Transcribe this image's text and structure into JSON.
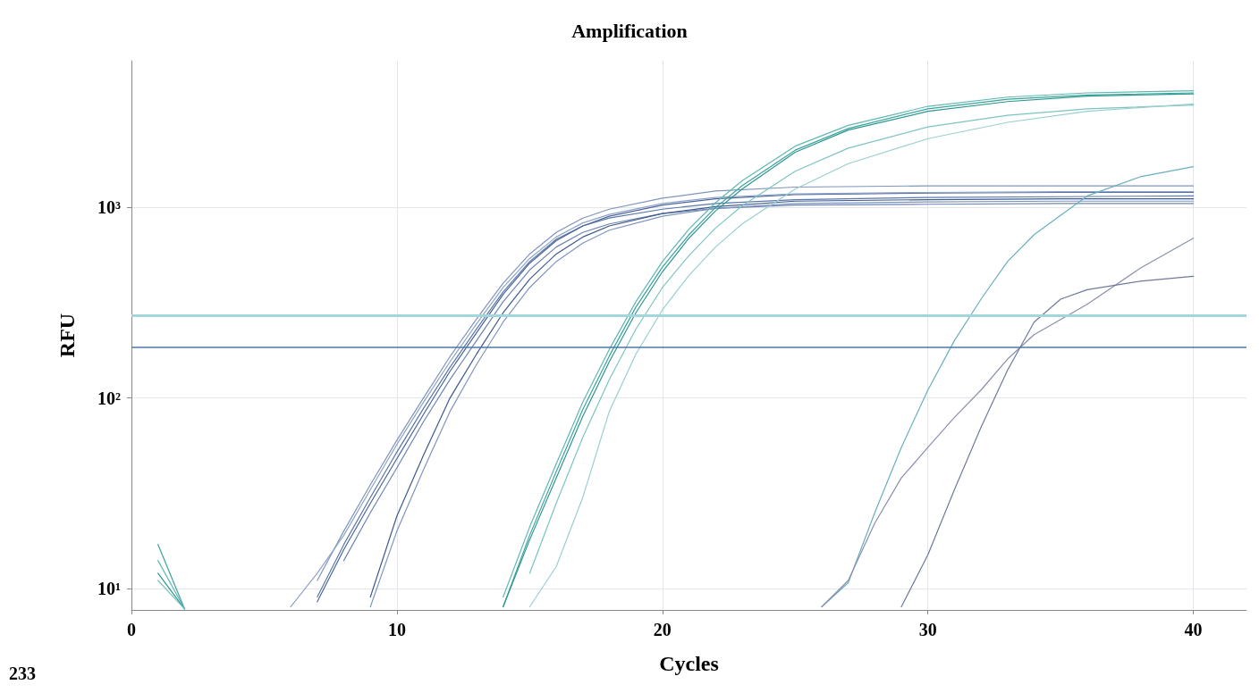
{
  "chart_data": {
    "type": "line",
    "title": "Amplification",
    "xlabel": "Cycles",
    "ylabel": "RFU",
    "log": "y",
    "xlim": [
      0,
      42
    ],
    "xticks": [
      0,
      10,
      20,
      30,
      40
    ],
    "ylim": [
      7.7,
      5900
    ],
    "yticks": [
      {
        "value": 10,
        "label": "10¹"
      },
      {
        "value": 100,
        "label": "10²"
      },
      {
        "value": 1000,
        "label": "10³"
      }
    ],
    "grid": true,
    "marker": "none",
    "line_style": "solid",
    "annotations": [
      "233"
    ],
    "ref_lines": [
      {
        "axis": "y",
        "value": 272,
        "label": null,
        "color": "#a3d6da"
      },
      {
        "axis": "y",
        "value": 185,
        "label": null,
        "color": "#4a78a8"
      }
    ],
    "series": [
      {
        "color": "#5a78a8",
        "x": [
          7,
          8,
          9,
          10,
          11,
          12,
          13,
          14,
          15,
          16,
          17,
          18,
          20,
          22,
          25,
          30,
          35,
          40
        ],
        "values": [
          9,
          17,
          30,
          52,
          88,
          145,
          230,
          360,
          520,
          680,
          800,
          880,
          980,
          1050,
          1100,
          1130,
          1140,
          1150
        ]
      },
      {
        "color": "#7f95bd",
        "x": [
          7,
          8,
          9,
          10,
          11,
          12,
          13,
          14,
          15,
          16,
          17,
          18,
          20,
          22,
          25,
          30,
          35,
          40
        ],
        "values": [
          11,
          20,
          35,
          60,
          100,
          165,
          260,
          400,
          570,
          740,
          880,
          980,
          1120,
          1220,
          1280,
          1300,
          1300,
          1300
        ]
      },
      {
        "color": "#4b659a",
        "x": [
          7,
          8,
          9,
          10,
          11,
          12,
          13,
          14,
          15,
          16,
          17,
          18,
          20,
          22,
          25,
          30,
          35,
          40
        ],
        "values": [
          8.5,
          16,
          28,
          48,
          82,
          138,
          220,
          350,
          510,
          670,
          800,
          900,
          1030,
          1110,
          1170,
          1190,
          1200,
          1200
        ]
      },
      {
        "color": "#6d86b3",
        "x": [
          8,
          9,
          10,
          11,
          12,
          13,
          14,
          15,
          16,
          17,
          18,
          20,
          22,
          25,
          30,
          35,
          40
        ],
        "values": [
          14,
          25,
          43,
          75,
          125,
          200,
          320,
          470,
          620,
          740,
          820,
          930,
          990,
          1030,
          1040,
          1050,
          1050
        ]
      },
      {
        "color": "#8fa3c8",
        "x": [
          6,
          7,
          8,
          9,
          10,
          11,
          12,
          13,
          14,
          15,
          16,
          17,
          18,
          20,
          22,
          25,
          30,
          35,
          40
        ],
        "values": [
          8,
          12,
          19,
          33,
          57,
          95,
          155,
          245,
          380,
          540,
          700,
          830,
          920,
          1050,
          1130,
          1180,
          1200,
          1210,
          1210
        ]
      },
      {
        "color": "#3f5a8c",
        "x": [
          9,
          10,
          11,
          12,
          13,
          14,
          15,
          16,
          17,
          18,
          20,
          22,
          25,
          30,
          35,
          40
        ],
        "values": [
          9,
          24,
          50,
          100,
          170,
          280,
          420,
          570,
          700,
          800,
          930,
          1010,
          1080,
          1100,
          1110,
          1110
        ]
      },
      {
        "color": "#8095bd",
        "x": [
          9,
          10,
          11,
          12,
          13,
          14,
          15,
          16,
          17,
          18,
          20,
          22,
          25,
          30,
          35,
          40
        ],
        "values": [
          8,
          20,
          42,
          85,
          150,
          250,
          380,
          520,
          650,
          760,
          900,
          990,
          1050,
          1070,
          1080,
          1080
        ]
      },
      {
        "color": "#3aa39d",
        "x": [
          1,
          2,
          3,
          14,
          15,
          16,
          17,
          18,
          19,
          20,
          21,
          22,
          23,
          25,
          27,
          30,
          33,
          36,
          40
        ],
        "values": [
          17,
          7.8,
          null,
          8,
          19,
          41,
          87,
          166,
          300,
          486,
          720,
          1000,
          1300,
          2000,
          2600,
          3300,
          3700,
          3900,
          4000
        ]
      },
      {
        "color": "#5fb8b2",
        "x": [
          1,
          2,
          3,
          14,
          15,
          16,
          17,
          18,
          19,
          20,
          21,
          22,
          23,
          25,
          27,
          30,
          33,
          36,
          40
        ],
        "values": [
          14,
          7.8,
          null,
          9,
          21,
          45,
          95,
          180,
          320,
          520,
          770,
          1060,
          1380,
          2100,
          2700,
          3400,
          3800,
          4000,
          4100
        ]
      },
      {
        "color": "#2e9690",
        "x": [
          1,
          2,
          3,
          14,
          15,
          16,
          17,
          18,
          19,
          20,
          21,
          22,
          23,
          25,
          27,
          30,
          33,
          36,
          40
        ],
        "values": [
          12,
          7.8,
          null,
          8,
          18,
          38,
          80,
          155,
          280,
          460,
          690,
          960,
          1250,
          1950,
          2550,
          3200,
          3600,
          3850,
          3950
        ]
      },
      {
        "color": "#7cc4c0",
        "x": [
          1,
          2,
          3,
          15,
          16,
          17,
          18,
          19,
          20,
          21,
          22,
          23,
          25,
          27,
          30,
          33,
          36,
          40
        ],
        "values": [
          11,
          7.8,
          null,
          12,
          28,
          62,
          125,
          230,
          380,
          560,
          780,
          1020,
          1550,
          2050,
          2650,
          3050,
          3300,
          3450
        ]
      },
      {
        "color": "#9acfcf",
        "x": [
          15,
          16,
          17,
          18,
          19,
          20,
          21,
          22,
          23,
          25,
          27,
          30,
          33,
          36,
          40
        ],
        "values": [
          8,
          13,
          30,
          85,
          170,
          290,
          440,
          620,
          820,
          1250,
          1700,
          2300,
          2800,
          3200,
          3500
        ]
      },
      {
        "color": "#6aaec0",
        "x": [
          26,
          27,
          28,
          29,
          30,
          31,
          32,
          33,
          34,
          36,
          38,
          40
        ],
        "values": [
          8,
          10.7,
          25,
          55,
          110,
          200,
          330,
          520,
          720,
          1150,
          1450,
          1640
        ]
      },
      {
        "color": "#8a8fae",
        "x": [
          26,
          27,
          28,
          29,
          30,
          31,
          32,
          33,
          34,
          36,
          38,
          40
        ],
        "values": [
          8,
          11,
          22,
          38,
          55,
          79,
          110,
          160,
          215,
          310,
          480,
          690
        ]
      },
      {
        "color": "#6e7a99",
        "x": [
          29,
          30,
          31,
          32,
          33,
          34,
          35,
          36,
          38,
          40
        ],
        "values": [
          8,
          15,
          33,
          70,
          140,
          250,
          330,
          370,
          410,
          435
        ]
      }
    ]
  }
}
